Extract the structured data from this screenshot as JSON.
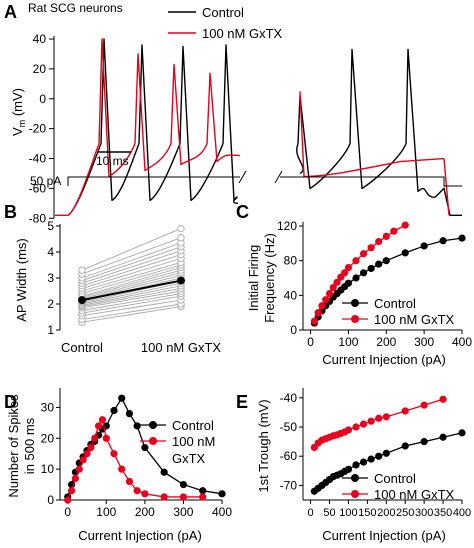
{
  "colors": {
    "control": "#000000",
    "gxtx": "#e8001c",
    "individual": "#a8a8a8"
  },
  "panel_labels": [
    "A",
    "B",
    "C",
    "D",
    "E"
  ],
  "panel_a": {
    "annotation": "Rat SCG neurons",
    "ylabel": "V",
    "ylabel_sub": "m",
    "ylabel_unit": " (mV)",
    "yticks": [
      "40",
      "20",
      "0",
      "-20",
      "-40",
      "-60",
      "-80"
    ],
    "scalebar_label": "10 ms",
    "current_label": "50 pA",
    "legend": {
      "control": "Control",
      "gxtx": "100 nM GxTX"
    }
  },
  "chart_data": [
    {
      "id": "B",
      "type": "scatter",
      "ylabel": "AP Width (ms)",
      "categories": [
        "Control",
        "100 nM GxTX"
      ],
      "ylim": [
        1,
        5
      ],
      "yticks": [
        "1",
        "2",
        "3",
        "4",
        "5"
      ],
      "pairs": [
        [
          1.3,
          1.9
        ],
        [
          1.4,
          2.0
        ],
        [
          1.55,
          2.15
        ],
        [
          1.65,
          2.3
        ],
        [
          1.75,
          2.4
        ],
        [
          1.85,
          2.5
        ],
        [
          1.9,
          2.6
        ],
        [
          1.95,
          2.7
        ],
        [
          2.0,
          2.8
        ],
        [
          2.05,
          2.9
        ],
        [
          2.1,
          3.0
        ],
        [
          2.15,
          3.1
        ],
        [
          2.2,
          3.2
        ],
        [
          2.25,
          3.3
        ],
        [
          2.3,
          3.4
        ],
        [
          2.4,
          3.5
        ],
        [
          2.5,
          3.6
        ],
        [
          2.6,
          3.75
        ],
        [
          2.7,
          3.9
        ],
        [
          2.8,
          4.05
        ],
        [
          2.9,
          4.2
        ],
        [
          3.0,
          4.35
        ],
        [
          3.15,
          4.55
        ],
        [
          3.3,
          4.9
        ]
      ],
      "mean": [
        2.15,
        2.9
      ],
      "sem": [
        0.1,
        0.15
      ]
    },
    {
      "id": "C",
      "type": "line",
      "xlabel": "Current Injection (pA)",
      "ylabel": "Initial Firing Frequency (Hz)",
      "ylabel_lines": [
        "Initial Firing",
        "Frequency (Hz)"
      ],
      "xlim": [
        -20,
        400
      ],
      "ylim": [
        0,
        120
      ],
      "xticks": [
        "0",
        "100",
        "200",
        "300",
        "400"
      ],
      "yticks": [
        "0",
        "40",
        "80",
        "120"
      ],
      "legend_position": "bottom-right",
      "series": [
        {
          "name": "Control",
          "x": [
            10,
            20,
            30,
            40,
            50,
            60,
            70,
            80,
            90,
            100,
            120,
            140,
            160,
            180,
            200,
            250,
            300,
            350,
            400
          ],
          "y": [
            8,
            15,
            22,
            28,
            33,
            38,
            42,
            46,
            50,
            54,
            60,
            66,
            71,
            76,
            80,
            89,
            97,
            103,
            106
          ]
        },
        {
          "name": "100 nM GxTX",
          "x": [
            10,
            20,
            30,
            40,
            50,
            60,
            70,
            80,
            90,
            100,
            120,
            140,
            160,
            180,
            200,
            220,
            250
          ],
          "y": [
            10,
            20,
            28,
            35,
            42,
            49,
            55,
            61,
            66,
            72,
            80,
            88,
            95,
            102,
            108,
            114,
            121
          ]
        }
      ]
    },
    {
      "id": "D",
      "type": "line",
      "xlabel": "Current Injection (pA)",
      "ylabel": "Number of Spikes in 500 ms",
      "ylabel_lines": [
        "Number of Spikes",
        "in 500 ms"
      ],
      "xlim": [
        -20,
        400
      ],
      "ylim": [
        0,
        35
      ],
      "xticks": [
        "0",
        "100",
        "200",
        "300",
        "400"
      ],
      "yticks": [
        "0",
        "10",
        "20",
        "30"
      ],
      "legend_position": "top-right",
      "legend_lines": [
        "100 nM",
        "GxTX"
      ],
      "series": [
        {
          "name": "Control",
          "x": [
            0,
            10,
            20,
            30,
            40,
            50,
            60,
            70,
            80,
            90,
            100,
            120,
            140,
            160,
            180,
            200,
            250,
            300,
            350,
            400
          ],
          "y": [
            1,
            5,
            9,
            12,
            14,
            16,
            18,
            19,
            21,
            23,
            24,
            29,
            33,
            28,
            24,
            17,
            9,
            5,
            3,
            2
          ]
        },
        {
          "name": "100 nM GxTX",
          "x": [
            0,
            10,
            20,
            30,
            40,
            50,
            60,
            70,
            80,
            90,
            100,
            120,
            140,
            160,
            180,
            200,
            250,
            300,
            350
          ],
          "y": [
            0,
            3,
            7,
            10,
            13,
            15,
            17,
            20,
            24,
            26,
            20,
            15,
            10,
            6,
            3,
            2,
            1,
            1,
            1
          ]
        }
      ]
    },
    {
      "id": "E",
      "type": "line",
      "xlabel": "Current Injection (pA)",
      "ylabel": "1st Trough (mV)",
      "xlim": [
        -20,
        400
      ],
      "ylim": [
        -75,
        -38
      ],
      "xticks": [
        "0",
        "50",
        "100",
        "150",
        "200",
        "250",
        "300",
        "350",
        "400"
      ],
      "yticks": [
        "-70",
        "-60",
        "-50",
        "-40"
      ],
      "legend_position": "bottom-right",
      "series": [
        {
          "name": "Control",
          "x": [
            10,
            20,
            30,
            40,
            50,
            60,
            70,
            80,
            90,
            100,
            120,
            140,
            160,
            180,
            200,
            250,
            300,
            350,
            400
          ],
          "y": [
            -72,
            -71,
            -70,
            -69,
            -68,
            -67,
            -66.5,
            -66,
            -65.2,
            -64.5,
            -63,
            -62,
            -61,
            -60,
            -59,
            -56.5,
            -55,
            -53.5,
            -52
          ]
        },
        {
          "name": "100 nM GxTX",
          "x": [
            10,
            20,
            30,
            40,
            50,
            60,
            70,
            80,
            90,
            100,
            120,
            140,
            160,
            180,
            200,
            250,
            300,
            350
          ],
          "y": [
            -57,
            -55.5,
            -54.5,
            -54,
            -53.5,
            -53,
            -52.7,
            -52.2,
            -51.7,
            -51,
            -50,
            -49,
            -48,
            -47,
            -46.5,
            -44.5,
            -42.5,
            -40.5
          ]
        }
      ]
    }
  ]
}
